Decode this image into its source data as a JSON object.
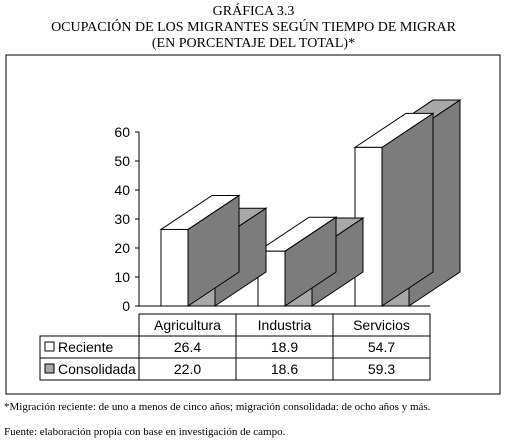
{
  "chart_data": {
    "type": "bar",
    "label": "GRÁFICA 3.3",
    "title": "OCUPACIÓN DE LOS MIGRANTES SEGÚN TIEMPO DE MIGRAR",
    "subtitle": "(EN PORCENTAJE DEL TOTAL)*",
    "categories": [
      "Agricultura",
      "Industria",
      "Servicios"
    ],
    "series": [
      {
        "name": "Reciente",
        "values": [
          26.4,
          18.9,
          54.7
        ],
        "color": "#ffffff",
        "value_labels": [
          "26.4",
          "18.9",
          "54.7"
        ]
      },
      {
        "name": "Consolidada",
        "values": [
          22.0,
          18.6,
          59.3
        ],
        "color": "#a8a8a8",
        "value_labels": [
          "22.0",
          "18.6",
          "59.3"
        ]
      }
    ],
    "ylim": [
      0,
      60
    ],
    "yticks": [
      0,
      10,
      20,
      30,
      40,
      50,
      60
    ],
    "xlabel": "",
    "ylabel": "",
    "grid": false,
    "legend": "data-table",
    "three_d": true,
    "colors": {
      "side_dark": "#7c7c7c",
      "outline": "#000000"
    }
  },
  "notes": {
    "footnote": "*Migración reciente: de uno a menos de cinco años; migración consolidada: de ocho años y más.",
    "source": "Fuente: elaboración propia con base en investigación de campo."
  }
}
